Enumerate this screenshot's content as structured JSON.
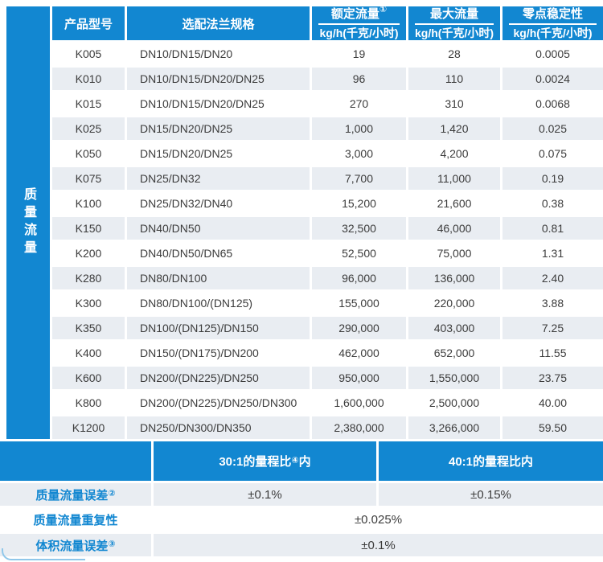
{
  "colors": {
    "accent_blue": "#1287d1",
    "row_alt_gray": "#e9edf2",
    "arc_light_blue": "#8fc7ea",
    "body_text": "#3c3c3c"
  },
  "sidebar": {
    "label": "质量流量"
  },
  "table": {
    "headers": {
      "model": "产品型号",
      "flange": "选配法兰规格",
      "rated": {
        "title": "额定流量",
        "sup": "①",
        "unit": "kg/h(千克/小时)"
      },
      "max": {
        "title": "最大流量",
        "sup": "",
        "unit": "kg/h(千克/小时)"
      },
      "zero": {
        "title": "零点稳定性",
        "sup": "",
        "unit": "kg/h(千克/小时)"
      }
    },
    "rows": [
      {
        "model": "K005",
        "flange": "DN10/DN15/DN20",
        "rated": "19",
        "max": "28",
        "zero": "0.0005"
      },
      {
        "model": "K010",
        "flange": "DN10/DN15/DN20/DN25",
        "rated": "96",
        "max": "110",
        "zero": "0.0024"
      },
      {
        "model": "K015",
        "flange": "DN10/DN15/DN20/DN25",
        "rated": "270",
        "max": "310",
        "zero": "0.0068"
      },
      {
        "model": "K025",
        "flange": "DN15/DN20/DN25",
        "rated": "1,000",
        "max": "1,420",
        "zero": "0.025"
      },
      {
        "model": "K050",
        "flange": "DN15/DN20/DN25",
        "rated": "3,000",
        "max": "4,200",
        "zero": "0.075"
      },
      {
        "model": "K075",
        "flange": "DN25/DN32",
        "rated": "7,700",
        "max": "11,000",
        "zero": "0.19"
      },
      {
        "model": "K100",
        "flange": "DN25/DN32/DN40",
        "rated": "15,200",
        "max": "21,600",
        "zero": "0.38"
      },
      {
        "model": "K150",
        "flange": "DN40/DN50",
        "rated": "32,500",
        "max": "46,000",
        "zero": "0.81"
      },
      {
        "model": "K200",
        "flange": "DN40/DN50/DN65",
        "rated": "52,500",
        "max": "75,000",
        "zero": "1.31"
      },
      {
        "model": "K280",
        "flange": "DN80/DN100",
        "rated": "96,000",
        "max": "136,000",
        "zero": "2.40"
      },
      {
        "model": "K300",
        "flange": "DN80/DN100/(DN125)",
        "rated": "155,000",
        "max": "220,000",
        "zero": "3.88"
      },
      {
        "model": "K350",
        "flange": "DN100/(DN125)/DN150",
        "rated": "290,000",
        "max": "403,000",
        "zero": "7.25"
      },
      {
        "model": "K400",
        "flange": "DN150/(DN175)/DN200",
        "rated": "462,000",
        "max": "652,000",
        "zero": "11.55"
      },
      {
        "model": "K600",
        "flange": "DN200/(DN225)/DN250",
        "rated": "950,000",
        "max": "1,550,000",
        "zero": "23.75"
      },
      {
        "model": "K800",
        "flange": "DN200/(DN225)/DN250/DN300",
        "rated": "1,600,000",
        "max": "2,500,000",
        "zero": "40.00"
      },
      {
        "model": "K1200",
        "flange": "DN250/DN300/DN350",
        "rated": "2,380,000",
        "max": "3,266,000",
        "zero": "59.50"
      }
    ]
  },
  "accuracy": {
    "range_headers": [
      {
        "pre": "30:1的量程比",
        "sup": "④",
        "post": "内"
      },
      {
        "pre": "40:1的量程比内",
        "sup": "",
        "post": ""
      }
    ],
    "rows": [
      {
        "label": "质量流量误差",
        "sup": "②",
        "values": [
          "±0.1%",
          "±0.15%"
        ]
      },
      {
        "label": "质量流量重复性",
        "sup": "",
        "values": [
          "±0.025%"
        ]
      },
      {
        "label": "体积流量误差",
        "sup": "③",
        "values": [
          "±0.1%"
        ]
      }
    ]
  }
}
